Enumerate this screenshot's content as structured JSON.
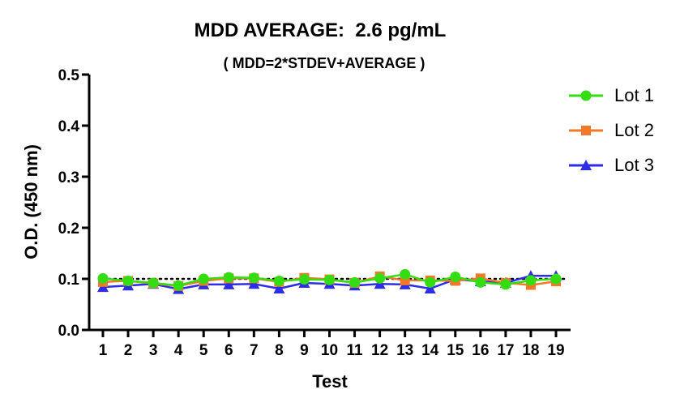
{
  "chart_data": {
    "type": "line",
    "title": "MDD AVERAGE:  2.6 pg/mL",
    "subtitle": "( MDD=2*STDEV+AVERAGE )",
    "xlabel": "Test",
    "ylabel": "O.D. (450 nm)",
    "categories": [
      "1",
      "2",
      "3",
      "4",
      "5",
      "6",
      "7",
      "8",
      "9",
      "10",
      "11",
      "12",
      "13",
      "14",
      "15",
      "16",
      "17",
      "18",
      "19"
    ],
    "ylim": [
      0,
      0.5
    ],
    "yticks": [
      "0.0",
      "0.1",
      "0.2",
      "0.3",
      "0.4",
      "0.5"
    ],
    "reference_line": {
      "y": 0.1,
      "style": "dotted",
      "color": "#000000"
    },
    "legend_position": "right",
    "series": [
      {
        "name": "Lot 1",
        "color": "#33dd11",
        "marker": "circle",
        "values": [
          0.101,
          0.096,
          0.092,
          0.087,
          0.1,
          0.103,
          0.102,
          0.096,
          0.099,
          0.098,
          0.093,
          0.101,
          0.109,
          0.093,
          0.104,
          0.093,
          0.089,
          0.097,
          0.1
        ]
      },
      {
        "name": "Lot 2",
        "color": "#f07a2a",
        "marker": "square",
        "values": [
          0.094,
          0.096,
          0.091,
          0.086,
          0.096,
          0.101,
          0.101,
          0.094,
          0.102,
          0.099,
          0.092,
          0.105,
          0.097,
          0.097,
          0.096,
          0.101,
          0.092,
          0.088,
          0.095
        ]
      },
      {
        "name": "Lot 3",
        "color": "#2d2de6",
        "marker": "triangle",
        "values": [
          0.084,
          0.087,
          0.09,
          0.08,
          0.089,
          0.089,
          0.09,
          0.081,
          0.092,
          0.09,
          0.087,
          0.09,
          0.089,
          0.081,
          0.099,
          0.095,
          0.092,
          0.106,
          0.106
        ]
      }
    ]
  }
}
